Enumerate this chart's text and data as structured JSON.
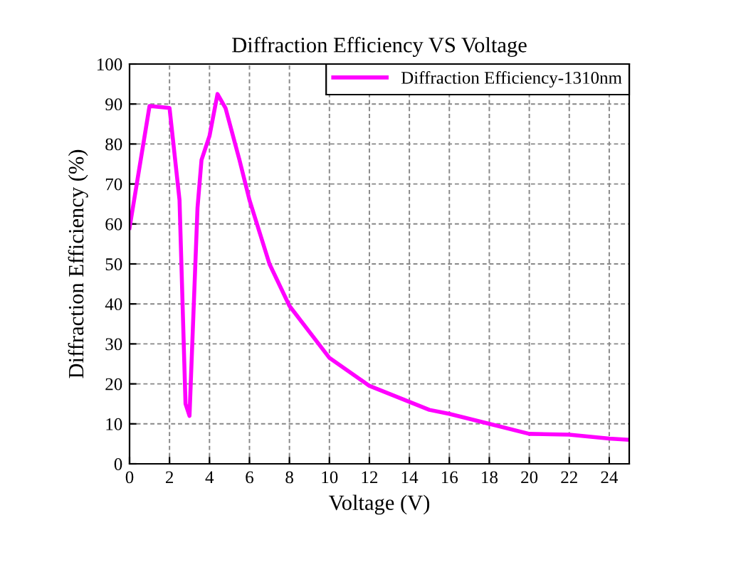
{
  "chart_data": {
    "type": "line",
    "title": "Diffraction Efficiency VS Voltage",
    "xlabel": "Voltage (V)",
    "ylabel": "Diffraction Efficiency (%)",
    "x": [
      0,
      1,
      2,
      2.5,
      2.8,
      3,
      3.4,
      3.6,
      4,
      4.4,
      4.8,
      5.5,
      6,
      7,
      8,
      10,
      12,
      14,
      15,
      16,
      18,
      20,
      22,
      24,
      25
    ],
    "series": [
      {
        "name": "Diffraction Efficiency-1310nm",
        "color": "#ff00ff",
        "values": [
          59,
          89.5,
          89,
          66,
          15,
          12,
          64,
          76,
          82,
          92.5,
          89,
          76,
          66,
          50,
          39.5,
          26.5,
          19.5,
          15.5,
          13.5,
          12.5,
          10,
          7.5,
          7.3,
          6.3,
          6
        ]
      }
    ],
    "xlim": [
      0,
      25
    ],
    "xticks": [
      0,
      2,
      4,
      6,
      8,
      10,
      12,
      14,
      16,
      18,
      20,
      22,
      24
    ],
    "ylim": [
      0,
      100
    ],
    "yticks": [
      0,
      10,
      20,
      30,
      40,
      50,
      60,
      70,
      80,
      90,
      100
    ],
    "grid": true,
    "legend": "top right",
    "marker": "none",
    "line_style": "solid"
  }
}
